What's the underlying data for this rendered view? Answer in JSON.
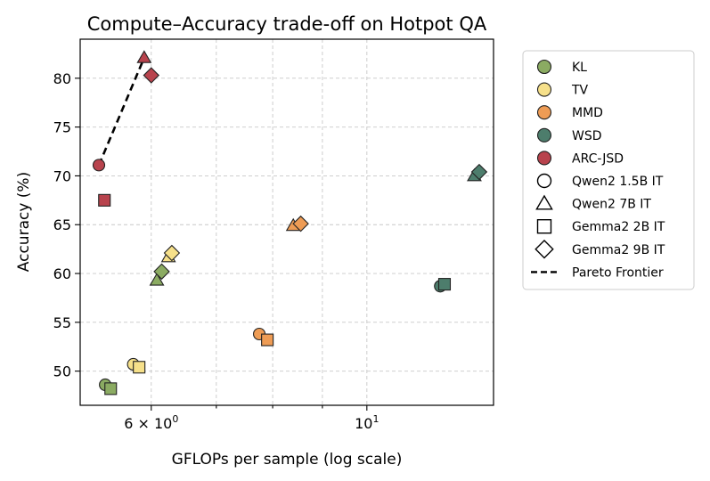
{
  "chart_data": {
    "type": "scatter",
    "title": "Compute–Accuracy trade-off on Hotpot QA",
    "xlabel": "GFLOPs per sample (log scale)",
    "ylabel": "Accuracy (%)",
    "xscale": "log",
    "xlim": [
      5.07,
      13.5
    ],
    "ylim": [
      46.5,
      84
    ],
    "x_major_ticks": [
      {
        "value": 6,
        "label_base": "6 × 10",
        "label_exp": "0"
      },
      {
        "value": 10,
        "label_base": "10",
        "label_exp": "1"
      }
    ],
    "x_minor_ticks": [
      7,
      8,
      9
    ],
    "y_ticks": [
      50,
      55,
      60,
      65,
      70,
      75,
      80
    ],
    "grid": true,
    "legend_position": "outside-right",
    "methods": [
      {
        "name": "KL",
        "color": "#8bab62"
      },
      {
        "name": "TV",
        "color": "#f6e08a"
      },
      {
        "name": "MMD",
        "color": "#ee9c55"
      },
      {
        "name": "WSD",
        "color": "#4d7d6c"
      },
      {
        "name": "ARC-JSD",
        "color": "#b8434d"
      }
    ],
    "models": [
      {
        "name": "Qwen2 1.5B IT",
        "marker": "circle"
      },
      {
        "name": "Qwen2 7B IT",
        "marker": "triangle"
      },
      {
        "name": "Gemma2 2B IT",
        "marker": "square"
      },
      {
        "name": "Gemma2 9B IT",
        "marker": "diamond"
      }
    ],
    "pareto_label": "Pareto Frontier",
    "pareto_frontier": [
      [
        5.3,
        71.1
      ],
      [
        5.9,
        82.1
      ]
    ],
    "points": [
      {
        "method": "KL",
        "model": "Qwen2 1.5B IT",
        "x": 5.38,
        "y": 48.6
      },
      {
        "method": "KL",
        "model": "Qwen2 7B IT",
        "x": 6.08,
        "y": 59.3
      },
      {
        "method": "KL",
        "model": "Gemma2 2B IT",
        "x": 5.45,
        "y": 48.2
      },
      {
        "method": "KL",
        "model": "Gemma2 9B IT",
        "x": 6.15,
        "y": 60.2
      },
      {
        "method": "TV",
        "model": "Qwen2 1.5B IT",
        "x": 5.75,
        "y": 50.7
      },
      {
        "method": "TV",
        "model": "Qwen2 7B IT",
        "x": 6.25,
        "y": 61.7
      },
      {
        "method": "TV",
        "model": "Gemma2 2B IT",
        "x": 5.83,
        "y": 50.4
      },
      {
        "method": "TV",
        "model": "Gemma2 9B IT",
        "x": 6.3,
        "y": 62.1
      },
      {
        "method": "MMD",
        "model": "Qwen2 1.5B IT",
        "x": 7.75,
        "y": 53.8
      },
      {
        "method": "MMD",
        "model": "Qwen2 7B IT",
        "x": 8.4,
        "y": 64.9
      },
      {
        "method": "MMD",
        "model": "Gemma2 2B IT",
        "x": 7.9,
        "y": 53.2
      },
      {
        "method": "MMD",
        "model": "Gemma2 9B IT",
        "x": 8.55,
        "y": 65.1
      },
      {
        "method": "WSD",
        "model": "Qwen2 1.5B IT",
        "x": 11.9,
        "y": 58.7
      },
      {
        "method": "WSD",
        "model": "Qwen2 7B IT",
        "x": 12.9,
        "y": 70.0
      },
      {
        "method": "WSD",
        "model": "Gemma2 2B IT",
        "x": 12.02,
        "y": 58.9
      },
      {
        "method": "WSD",
        "model": "Gemma2 9B IT",
        "x": 13.05,
        "y": 70.4
      },
      {
        "method": "ARC-JSD",
        "model": "Qwen2 1.5B IT",
        "x": 5.3,
        "y": 71.1
      },
      {
        "method": "ARC-JSD",
        "model": "Qwen2 7B IT",
        "x": 5.9,
        "y": 82.1
      },
      {
        "method": "ARC-JSD",
        "model": "Gemma2 2B IT",
        "x": 5.37,
        "y": 67.5
      },
      {
        "method": "ARC-JSD",
        "model": "Gemma2 9B IT",
        "x": 6.0,
        "y": 80.3
      }
    ]
  }
}
